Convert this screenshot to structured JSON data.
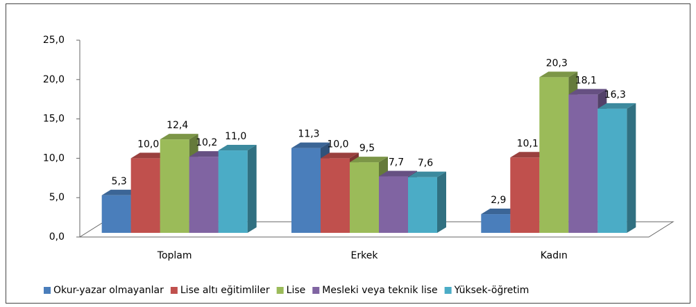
{
  "chart_data": {
    "type": "bar3d",
    "categories": [
      "Toplam",
      "Erkek",
      "Kadın"
    ],
    "series": [
      {
        "name": "Okur-yazar olmayanlar",
        "color": "#4a7ebb",
        "values": [
          5.3,
          11.3,
          2.9
        ],
        "value_labels": [
          "5,3",
          "11,3",
          "2,9"
        ]
      },
      {
        "name": "Lise altı eğitimliler",
        "color": "#c0504d",
        "values": [
          10.0,
          10.0,
          10.1
        ],
        "value_labels": [
          "10,0",
          "10,0",
          "10,1"
        ]
      },
      {
        "name": "Lise",
        "color": "#9bbb59",
        "values": [
          12.4,
          9.5,
          20.3
        ],
        "value_labels": [
          "12,4",
          "9,5",
          "20,3"
        ]
      },
      {
        "name": "Mesleki veya teknik lise",
        "color": "#8064a2",
        "values": [
          10.2,
          7.7,
          18.1
        ],
        "value_labels": [
          "10,2",
          "7,7",
          "18,1"
        ]
      },
      {
        "name": "Yüksek-öğretim",
        "color": "#4bacc6",
        "values": [
          11.0,
          7.6,
          16.3
        ],
        "value_labels": [
          "11,0",
          "7,6",
          "16,3"
        ]
      }
    ],
    "ylim": [
      0,
      25
    ],
    "yticks": [
      {
        "value": 0,
        "label": "0,0"
      },
      {
        "value": 5,
        "label": "5,0"
      },
      {
        "value": 10,
        "label": "10,0"
      },
      {
        "value": 15,
        "label": "15,0"
      },
      {
        "value": 20,
        "label": "20,0"
      },
      {
        "value": 25,
        "label": "25,0"
      }
    ],
    "legend": "bottom"
  }
}
